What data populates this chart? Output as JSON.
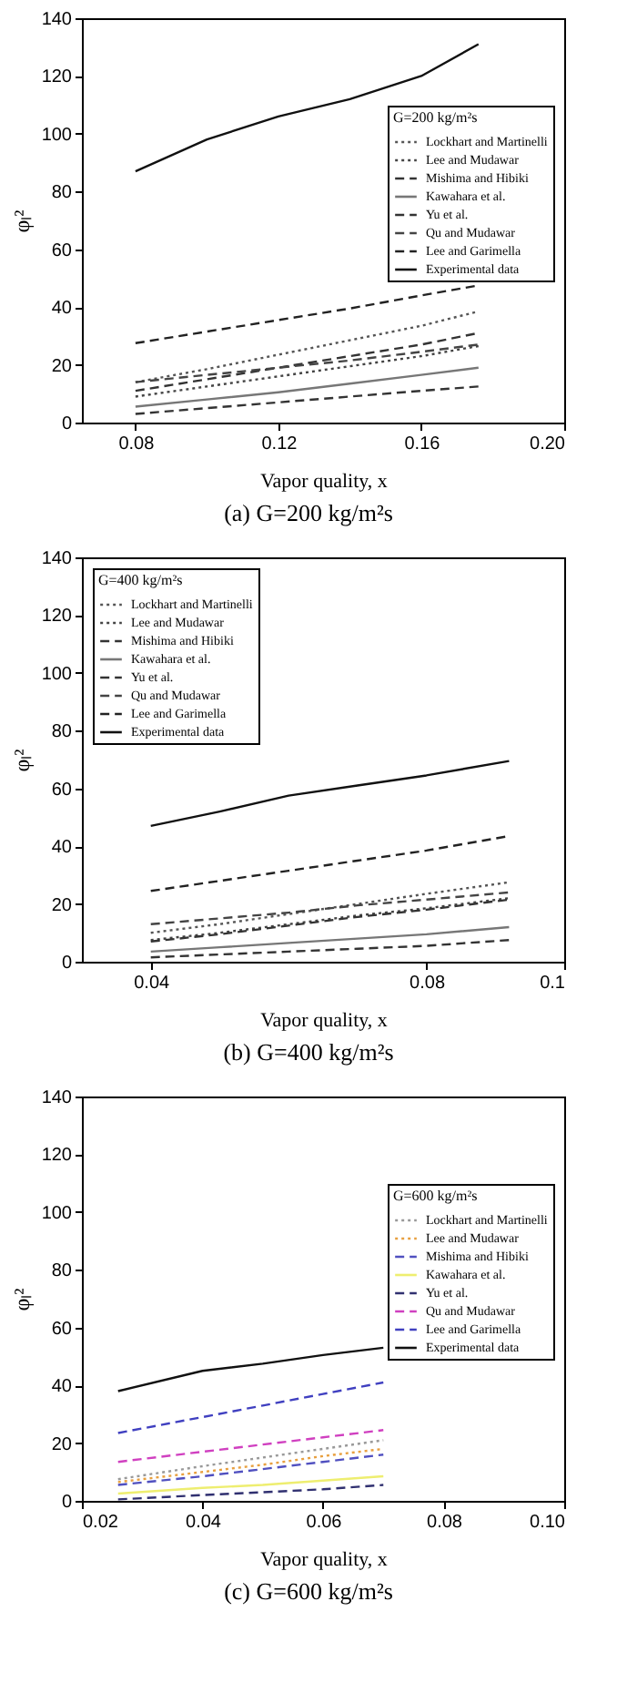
{
  "chart_data": [
    {
      "type": "line",
      "xlabel": "Vapor quality, x",
      "ylabel": "φₗ²",
      "legend_title": "G=200 kg/m²s",
      "annotations": [
        "(a)  G=200  kg/m²s"
      ],
      "legend": "top right",
      "xlim": [
        0.065,
        0.2
      ],
      "xticks": [
        0.08,
        0.12,
        0.16,
        {
          "value": 0.2,
          "label": "0.20"
        }
      ],
      "ylim": [
        0,
        140
      ],
      "yticks": [
        0,
        20,
        40,
        60,
        80,
        100,
        120,
        140
      ],
      "x": [
        0.08,
        0.1,
        0.12,
        0.14,
        0.16,
        0.176
      ],
      "series": [
        {
          "name": "Lockhart and Martinelli",
          "color": "#555555",
          "line_style": "dotted",
          "values": [
            14,
            18.5,
            23.5,
            28.5,
            33.5,
            38.5
          ]
        },
        {
          "name": "Lee and Mudawar",
          "color": "#444444",
          "line_style": "dotted",
          "values": [
            9,
            12.5,
            16,
            19.5,
            23,
            26.5
          ]
        },
        {
          "name": "Mishima and Hibiki",
          "color": "#333333",
          "line_style": "dashed",
          "values": [
            11,
            15,
            19,
            23,
            27,
            31
          ]
        },
        {
          "name": "Kawahara et al.",
          "color": "#777777",
          "line_style": "solid",
          "values": [
            5.5,
            8,
            10.5,
            13.5,
            16.5,
            19
          ]
        },
        {
          "name": "Yu et al.",
          "color": "#333333",
          "line_style": "dashed",
          "values": [
            3,
            5,
            7,
            9,
            11,
            12.5
          ]
        },
        {
          "name": "Qu and Mudawar",
          "color": "#444444",
          "line_style": "dashed",
          "values": [
            14,
            16.5,
            19,
            21.5,
            24.5,
            27
          ]
        },
        {
          "name": "Lee and Garimella",
          "color": "#222222",
          "line_style": "dashed",
          "values": [
            27.5,
            31.5,
            35.5,
            39.5,
            44,
            47.5
          ]
        },
        {
          "name": "Experimental data",
          "color": "#111111",
          "line_style": "solid",
          "values": [
            87,
            98,
            106,
            112,
            120,
            131
          ]
        }
      ]
    },
    {
      "type": "line",
      "xlabel": "Vapor quality, x",
      "ylabel": "φₗ²",
      "legend_title": "G=400 kg/m²s",
      "annotations": [
        "(b)  G=400  kg/m²s"
      ],
      "legend": "top left",
      "xlim": [
        0.03,
        0.1
      ],
      "xticks": [
        0.04,
        0.08,
        0.1
      ],
      "ylim": [
        0,
        140
      ],
      "yticks": [
        0,
        20,
        40,
        60,
        80,
        100,
        120,
        140
      ],
      "x": [
        0.04,
        0.05,
        0.06,
        0.07,
        0.08,
        0.092
      ],
      "series": [
        {
          "name": "Lockhart and Martinelli",
          "color": "#555555",
          "line_style": "dotted",
          "values": [
            10,
            13,
            16.5,
            20,
            23.5,
            27.5
          ]
        },
        {
          "name": "Lee and Mudawar",
          "color": "#444444",
          "line_style": "dotted",
          "values": [
            7.5,
            10,
            13,
            16,
            18.5,
            22
          ]
        },
        {
          "name": "Mishima and Hibiki",
          "color": "#333333",
          "line_style": "dashed",
          "values": [
            7,
            9.5,
            12.5,
            15.5,
            18,
            21.5
          ]
        },
        {
          "name": "Kawahara et al.",
          "color": "#777777",
          "line_style": "solid",
          "values": [
            3.5,
            5,
            6.5,
            8,
            9.5,
            12
          ]
        },
        {
          "name": "Yu et al.",
          "color": "#333333",
          "line_style": "dashed",
          "values": [
            1.5,
            2.5,
            3.5,
            4.5,
            5.5,
            7.5
          ]
        },
        {
          "name": "Qu and Mudawar",
          "color": "#444444",
          "line_style": "dashed",
          "values": [
            13,
            15,
            17,
            19.5,
            21.5,
            24
          ]
        },
        {
          "name": "Lee and Garimella",
          "color": "#222222",
          "line_style": "dashed",
          "values": [
            24.5,
            28,
            31.5,
            35,
            38.5,
            43.5
          ]
        },
        {
          "name": "Experimental data",
          "color": "#111111",
          "line_style": "solid",
          "values": [
            47,
            52,
            57.5,
            61,
            64.5,
            69.5
          ]
        }
      ]
    },
    {
      "type": "line",
      "xlabel": "Vapor quality, x",
      "ylabel": "φₗ²",
      "legend_title": "G=600 kg/m²s",
      "annotations": [
        "(c)  G=600  kg/m²s"
      ],
      "legend": "top right",
      "xlim": [
        0.02,
        0.1
      ],
      "xticks": [
        0.02,
        0.04,
        0.06,
        0.08,
        {
          "value": 0.1,
          "label": "0.10"
        }
      ],
      "ylim": [
        0,
        140
      ],
      "yticks": [
        0,
        20,
        40,
        60,
        80,
        100,
        120,
        140
      ],
      "x": [
        0.026,
        0.04,
        0.05,
        0.06,
        0.07
      ],
      "series": [
        {
          "name": "Lockhart and Martinelli",
          "color": "#999999",
          "line_style": "dotted",
          "values": [
            7.5,
            12,
            15,
            18,
            21
          ]
        },
        {
          "name": "Lee and Mudawar",
          "color": "#e8a040",
          "line_style": "dotted",
          "values": [
            6.5,
            10,
            12.5,
            15.5,
            18
          ]
        },
        {
          "name": "Mishima and Hibiki",
          "color": "#5050c0",
          "line_style": "dashed",
          "values": [
            5.5,
            8.5,
            11,
            13.5,
            16
          ]
        },
        {
          "name": "Kawahara et al.",
          "color": "#eeee70",
          "line_style": "solid",
          "values": [
            2.5,
            4.5,
            5.5,
            7,
            8.5
          ]
        },
        {
          "name": "Yu et al.",
          "color": "#303070",
          "line_style": "dashed",
          "values": [
            0.5,
            2,
            3,
            4,
            5.5
          ]
        },
        {
          "name": "Qu and Mudawar",
          "color": "#d040c0",
          "line_style": "dashed",
          "values": [
            13.5,
            17,
            19.5,
            22,
            24.5
          ]
        },
        {
          "name": "Lee and Garimella",
          "color": "#4040c0",
          "line_style": "dashed",
          "values": [
            23.5,
            29,
            33,
            37,
            41
          ]
        },
        {
          "name": "Experimental data",
          "color": "#111111",
          "line_style": "solid",
          "values": [
            38,
            45,
            47.5,
            50.5,
            53
          ]
        }
      ]
    }
  ]
}
